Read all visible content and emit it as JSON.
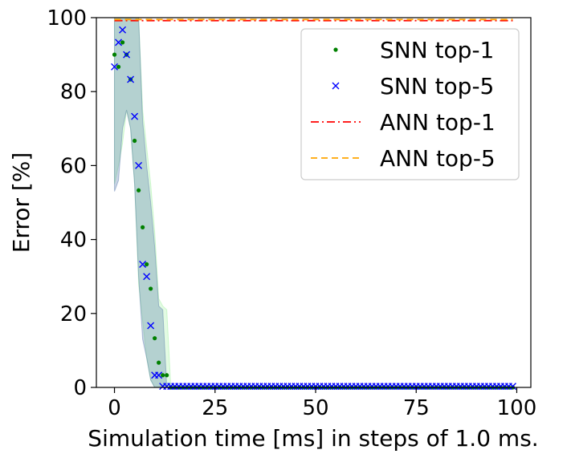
{
  "chart_data": {
    "type": "scatter",
    "xlabel": "Simulation time [ms] in steps of 1.0 ms.",
    "ylabel": "Error [%]",
    "xlim": [
      -4.5,
      103.5
    ],
    "ylim": [
      0,
      100
    ],
    "xticks": [
      "0",
      "25",
      "50",
      "75",
      "100"
    ],
    "yticks": [
      "0",
      "20",
      "40",
      "60",
      "80",
      "100"
    ],
    "grid": false,
    "legend_position": "top-right",
    "series": [
      {
        "name": "SNN top-1",
        "marker": "dot",
        "color": "#008000",
        "x": [
          0,
          1,
          2,
          3,
          4,
          5,
          6,
          7,
          8,
          9,
          10,
          11,
          12,
          13
        ],
        "y": [
          90.0,
          86.7,
          93.3,
          90.0,
          83.3,
          66.7,
          53.3,
          43.3,
          33.3,
          26.7,
          13.3,
          6.7,
          3.3,
          3.3
        ],
        "tail": {
          "x_start": 14,
          "x_end": 99,
          "y": 0
        }
      },
      {
        "name": "SNN top-5",
        "marker": "x",
        "color": "#0000ff",
        "x": [
          0,
          1,
          2,
          3,
          4,
          5,
          6,
          7,
          8,
          9,
          10,
          11,
          12
        ],
        "y": [
          86.7,
          93.3,
          96.7,
          90.0,
          83.3,
          73.3,
          60.0,
          33.3,
          30.0,
          16.7,
          3.3,
          3.3,
          0.3
        ],
        "tail": {
          "x_start": 13,
          "x_end": 99,
          "y": 0.3
        }
      },
      {
        "name": "ANN top-1",
        "line": "dashdot",
        "color": "#ff0000",
        "y": 99.2,
        "x_range": [
          0,
          99
        ]
      },
      {
        "name": "ANN top-5",
        "line": "dashed",
        "color": "#ffa500",
        "y": 99.5,
        "x_range": [
          0,
          99
        ]
      }
    ],
    "bands": [
      {
        "color": "#90ee90",
        "opacity": 0.25,
        "x": [
          0,
          1,
          2,
          3,
          4,
          5,
          6,
          7,
          8,
          9,
          10,
          11,
          12,
          13,
          14
        ],
        "lower": [
          55,
          60,
          66,
          75,
          70,
          55,
          28,
          18,
          8,
          2,
          0,
          0,
          0,
          0,
          0
        ],
        "upper": [
          100,
          100,
          100,
          100,
          100,
          100,
          100,
          75,
          65,
          55,
          42,
          24,
          22,
          21,
          0
        ]
      },
      {
        "color": "#4a6fa5",
        "opacity": 0.3,
        "x": [
          0,
          1,
          2,
          3,
          4,
          5,
          6,
          7,
          8,
          9,
          10,
          11,
          12,
          13
        ],
        "lower": [
          53,
          56,
          70,
          75,
          70,
          55,
          30,
          13,
          8,
          2,
          0,
          0,
          0,
          0
        ],
        "upper": [
          100,
          100,
          100,
          100,
          100,
          100,
          100,
          72,
          60,
          50,
          38,
          22,
          21,
          0
        ]
      }
    ]
  }
}
